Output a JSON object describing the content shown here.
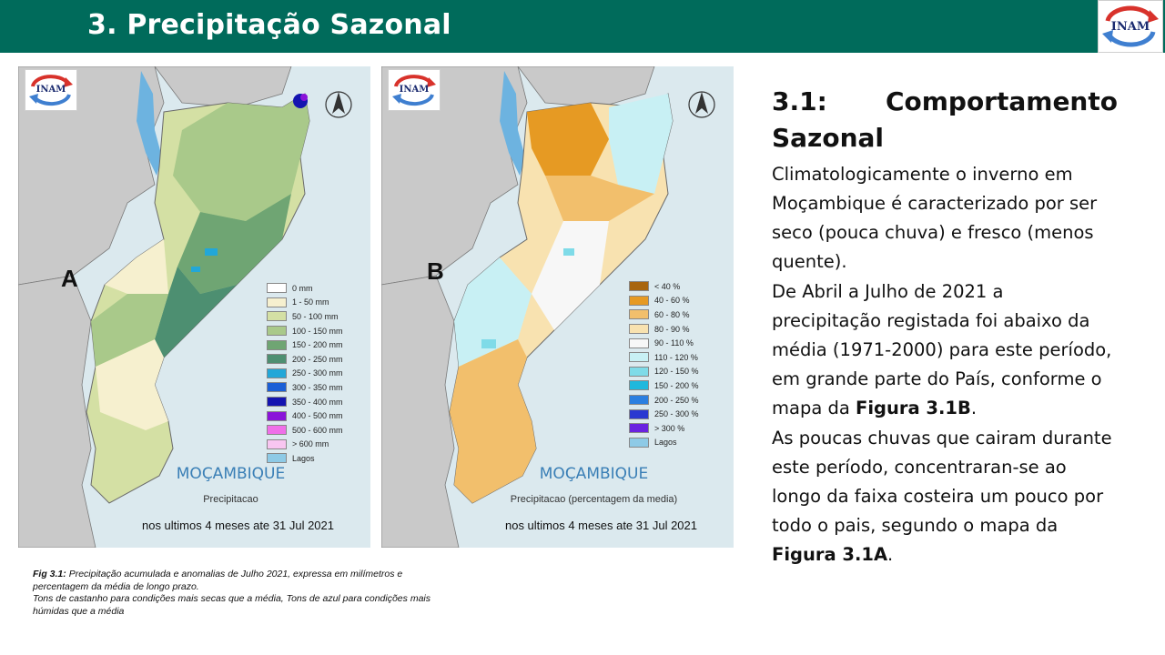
{
  "header": {
    "title": "3. Precipitação Sazonal",
    "logo_text": "INAM",
    "bg_color": "#006b5b"
  },
  "map_a": {
    "letter": "A",
    "logo_text": "INAM",
    "country": "MOÇAMBIQUE",
    "subtitle": "Precipitacao",
    "date_text": "nos ultimos 4 meses ate 31 Jul 2021",
    "legend": [
      {
        "label": "0 mm",
        "color": "#ffffff"
      },
      {
        "label": "1 - 50 mm",
        "color": "#f6f0cf"
      },
      {
        "label": "50 - 100 mm",
        "color": "#d4e0a4"
      },
      {
        "label": "100 - 150 mm",
        "color": "#a9c98a"
      },
      {
        "label": "150 - 200 mm",
        "color": "#6fa573"
      },
      {
        "label": "200 - 250 mm",
        "color": "#4d8f71"
      },
      {
        "label": "250 - 300 mm",
        "color": "#22a7d8"
      },
      {
        "label": "300 - 350 mm",
        "color": "#1b5fd6"
      },
      {
        "label": "350 - 400 mm",
        "color": "#1414b0"
      },
      {
        "label": "400 - 500 mm",
        "color": "#8a13d9"
      },
      {
        "label": "500 - 600 mm",
        "color": "#ef6fe8"
      },
      {
        "label": "> 600 mm",
        "color": "#f8c6f1"
      },
      {
        "label": "Lagos",
        "color": "#8ecae6"
      }
    ]
  },
  "map_b": {
    "letter": "B",
    "logo_text": "INAM",
    "country": "MOÇAMBIQUE",
    "subtitle": "Precipitacao (percentagem da media)",
    "date_text": "nos ultimos 4 meses ate 31 Jul 2021",
    "legend": [
      {
        "label": "< 40 %",
        "color": "#a8650f"
      },
      {
        "label": "40 - 60 %",
        "color": "#e69a23"
      },
      {
        "label": "60 - 80 %",
        "color": "#f2bf6c"
      },
      {
        "label": "80 - 90 %",
        "color": "#f8e2b0"
      },
      {
        "label": "90 - 110 %",
        "color": "#f7f7f7"
      },
      {
        "label": "110 - 120 %",
        "color": "#c8f0f4"
      },
      {
        "label": "120 - 150 %",
        "color": "#7fdbe8"
      },
      {
        "label": "150 - 200 %",
        "color": "#1fb8dd"
      },
      {
        "label": "200 - 250 %",
        "color": "#2b7fe0"
      },
      {
        "label": "250 - 300 %",
        "color": "#2a38d1"
      },
      {
        "label": "> 300 %",
        "color": "#6a22e0"
      },
      {
        "label": "Lagos",
        "color": "#8ecae6"
      }
    ]
  },
  "caption": {
    "line1_label": "Fig 3.1:",
    "line1_text": "Precipitação acumulada e anomalias de Julho 2021, expressa em milímetros e percentagem da média de longo prazo.",
    "line2_text": "Tons de castanho para condições mais secas que a média, Tons de azul para condições mais húmidas que a média"
  },
  "right": {
    "heading_part1": "3.1:",
    "heading_part2": "Comportamento",
    "heading_part3": "Sazonal",
    "para1": "Climatologicamente o inverno em Moçambique é caracterizado por ser seco (pouca chuva) e fresco (menos quente).",
    "para2_text": "De Abril a Julho de 2021 a precipitação registada foi abaixo da média (1971-2000) para este período, em grande parte do País, conforme o mapa da",
    "para2_bold": "Figura 3.1B",
    "para2_end": ".",
    "para3_text": "As poucas chuvas que cairam durante este período, concentraran-se ao longo da faixa costeira um pouco por todo o pais, segundo o mapa da",
    "para3_bold": "Figura 3.1A",
    "para3_end": "."
  }
}
